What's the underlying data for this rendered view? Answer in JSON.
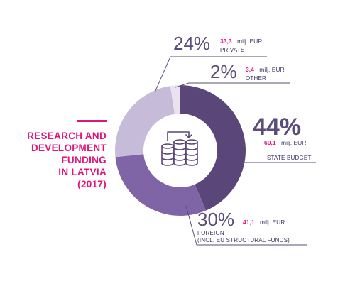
{
  "chart_data": {
    "type": "pie",
    "title": [
      "RESEARCH AND",
      "DEVELOPMENT",
      "FUNDING",
      "IN LATVIA",
      "(2017)"
    ],
    "unit": "milj. EUR",
    "slices": [
      {
        "percent_label": "44%",
        "value": 60.1,
        "value_label": "60,1",
        "category": [
          "STATE BUDGET"
        ],
        "color": "#5a4679"
      },
      {
        "percent_label": "30%",
        "value": 41.1,
        "value_label": "41,1",
        "category": [
          "FOREIGN",
          "(INCL. EU STRUCTURAL FUNDS)"
        ],
        "color": "#7f64a6"
      },
      {
        "percent_label": "24%",
        "value": 33.3,
        "value_label": "33,3",
        "category": [
          "PRIVATE"
        ],
        "color": "#c6bbd9"
      },
      {
        "percent_label": "2%",
        "value": 3.4,
        "value_label": "3,4",
        "category": [
          "OTHER"
        ],
        "color": "#e9e3f0"
      }
    ]
  },
  "colors": {
    "accent": "#e0157c",
    "text_dark": "#5a4d79",
    "icon": "#5a4679"
  },
  "icon": "coins-stack-transfer-icon"
}
